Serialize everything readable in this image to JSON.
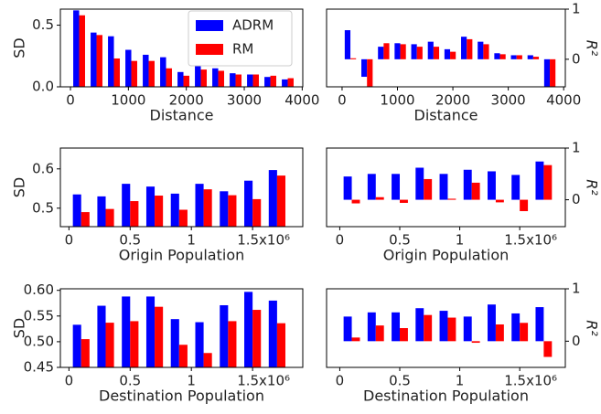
{
  "chart_data": [
    {
      "type": "bar",
      "xlabel": "Distance",
      "ylabel": "SD",
      "yaxis_side": "left",
      "legend": "upper right",
      "x": [
        150,
        450,
        750,
        1050,
        1350,
        1650,
        1950,
        2250,
        2550,
        2850,
        3150,
        3450,
        3750
      ],
      "series": [
        {
          "name": "ADRM",
          "color": "#0000ff",
          "values": [
            0.62,
            0.44,
            0.41,
            0.3,
            0.26,
            0.24,
            0.12,
            0.18,
            0.15,
            0.11,
            0.1,
            0.08,
            0.06
          ]
        },
        {
          "name": "RM",
          "color": "#ff0000",
          "values": [
            0.58,
            0.42,
            0.23,
            0.21,
            0.21,
            0.15,
            0.09,
            0.14,
            0.13,
            0.1,
            0.1,
            0.09,
            0.07
          ]
        }
      ],
      "xlim": [
        -174,
        4010
      ],
      "ylim": [
        0,
        0.63
      ],
      "xticks": [
        0,
        1000,
        2000,
        3000,
        4000
      ],
      "yticks": [
        {
          "value": 0,
          "label": "0.0"
        },
        0.5
      ]
    },
    {
      "type": "bar",
      "xlabel": "Distance",
      "ylabel": "R²",
      "yaxis_side": "right",
      "x": [
        150,
        450,
        750,
        1050,
        1350,
        1650,
        1950,
        2250,
        2550,
        2850,
        3150,
        3450,
        3750
      ],
      "series": [
        {
          "color": "#0000ff",
          "values": [
            0.58,
            -0.35,
            0.25,
            0.32,
            0.3,
            0.35,
            0.2,
            0.45,
            0.35,
            0.12,
            0.08,
            0.08,
            -0.55
          ]
        },
        {
          "color": "#ff0000",
          "values": [
            0.02,
            -0.55,
            0.32,
            0.3,
            0.25,
            0.25,
            0.15,
            0.4,
            0.3,
            0.1,
            0.08,
            0.05,
            -0.55
          ]
        }
      ],
      "xlim": [
        -280,
        4030
      ],
      "ylim": [
        -0.55,
        1
      ],
      "xticks": [
        0,
        1000,
        2000,
        3000,
        4000
      ],
      "yticks": [
        0,
        1
      ]
    },
    {
      "type": "bar",
      "xlabel": "Origin Population",
      "ylabel": "SD",
      "yaxis_side": "left",
      "x": [
        0.1,
        0.3,
        0.5,
        0.7,
        0.9,
        1.1,
        1.3,
        1.5,
        1.7
      ],
      "series": [
        {
          "color": "#0000ff",
          "values": [
            0.535,
            0.53,
            0.562,
            0.555,
            0.537,
            0.562,
            0.543,
            0.57,
            0.597
          ]
        },
        {
          "color": "#ff0000",
          "values": [
            0.49,
            0.498,
            0.518,
            0.532,
            0.496,
            0.548,
            0.533,
            0.523,
            0.583
          ]
        }
      ],
      "xlim": [
        -0.07,
        1.91
      ],
      "ylim": [
        0.453,
        0.653
      ],
      "xticks": [
        0,
        0.5,
        1,
        {
          "value": 1.5,
          "label": "1.5x10⁶"
        }
      ],
      "yticks": [
        0.5,
        0.6
      ]
    },
    {
      "type": "bar",
      "xlabel": "Origin Population",
      "ylabel": "R²",
      "yaxis_side": "right",
      "x": [
        0.1,
        0.3,
        0.5,
        0.7,
        0.9,
        1.1,
        1.3,
        1.5,
        1.7
      ],
      "series": [
        {
          "color": "#0000ff",
          "values": [
            0.45,
            0.5,
            0.5,
            0.62,
            0.5,
            0.58,
            0.55,
            0.48,
            0.74
          ]
        },
        {
          "color": "#ff0000",
          "values": [
            -0.07,
            0.05,
            -0.06,
            0.4,
            0.02,
            0.33,
            -0.05,
            -0.22,
            0.67
          ]
        }
      ],
      "xlim": [
        -0.11,
        1.88
      ],
      "ylim": [
        -0.52,
        1
      ],
      "xticks": [
        0,
        0.5,
        1,
        {
          "value": 1.5,
          "label": "1.5x10⁶"
        }
      ],
      "yticks": [
        0,
        1
      ]
    },
    {
      "type": "bar",
      "xlabel": "Destination Population",
      "ylabel": "SD",
      "yaxis_side": "left",
      "x": [
        0.1,
        0.3,
        0.5,
        0.7,
        0.9,
        1.1,
        1.3,
        1.5,
        1.7
      ],
      "series": [
        {
          "color": "#0000ff",
          "values": [
            0.533,
            0.57,
            0.588,
            0.588,
            0.544,
            0.538,
            0.571,
            0.597,
            0.58
          ]
        },
        {
          "color": "#ff0000",
          "values": [
            0.505,
            0.537,
            0.54,
            0.568,
            0.494,
            0.478,
            0.54,
            0.562,
            0.536
          ]
        }
      ],
      "xlim": [
        -0.07,
        1.91
      ],
      "ylim": [
        0.45,
        0.603
      ],
      "xticks": [
        0,
        0.5,
        1,
        {
          "value": 1.5,
          "label": "1.5x10⁶"
        }
      ],
      "yticks": [
        0.45,
        {
          "value": 0.5,
          "label": "0.50"
        },
        0.55,
        {
          "value": 0.6,
          "label": "0.60"
        }
      ]
    },
    {
      "type": "bar",
      "xlabel": "Destination Population",
      "ylabel": "R²",
      "yaxis_side": "right",
      "x": [
        0.1,
        0.3,
        0.5,
        0.7,
        0.9,
        1.1,
        1.3,
        1.5,
        1.7
      ],
      "series": [
        {
          "color": "#0000ff",
          "values": [
            0.47,
            0.55,
            0.55,
            0.63,
            0.58,
            0.47,
            0.7,
            0.53,
            0.65
          ]
        },
        {
          "color": "#ff0000",
          "values": [
            0.07,
            0.3,
            0.25,
            0.5,
            0.45,
            -0.03,
            0.32,
            0.35,
            -0.3
          ]
        }
      ],
      "xlim": [
        -0.11,
        1.88
      ],
      "ylim": [
        -0.5,
        1
      ],
      "xticks": [
        0,
        0.5,
        1,
        {
          "value": 1.5,
          "label": "1.5x10⁶"
        }
      ],
      "yticks": [
        0,
        1
      ]
    }
  ]
}
